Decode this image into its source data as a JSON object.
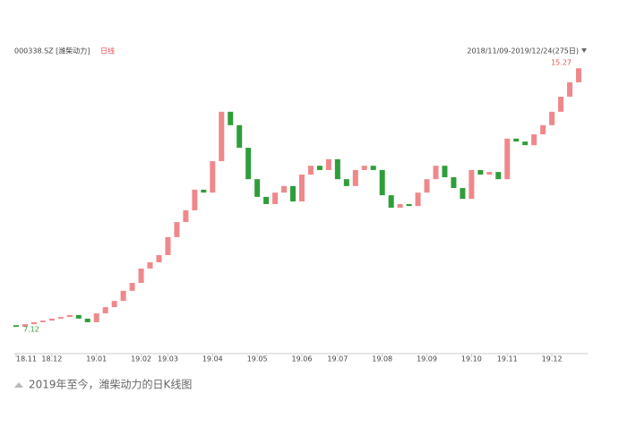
{
  "chart_data": {
    "type": "candlestick",
    "header_left": "000338.SZ [潍柴动力]",
    "header_period": "日线",
    "header_right": "2018/11/09-2019/12/24(275日)",
    "caption": "2019年至今，潍柴动力的日K线图",
    "low_label": 7.12,
    "high_label": 15.27,
    "up_color": "#e8555a",
    "down_color": "#2f9e3a",
    "categories": [
      "18.11",
      null,
      null,
      null,
      "18.12",
      null,
      null,
      null,
      null,
      "19.01",
      null,
      null,
      null,
      null,
      "19.02",
      null,
      null,
      "19.03",
      null,
      null,
      null,
      null,
      "19.04",
      null,
      null,
      null,
      null,
      "19.05",
      null,
      null,
      null,
      null,
      "19.06",
      null,
      null,
      null,
      "19.07",
      null,
      null,
      null,
      null,
      "19.08",
      null,
      null,
      null,
      null,
      "19.09",
      null,
      null,
      null,
      null,
      "19.10",
      null,
      null,
      null,
      "19.11",
      null,
      null,
      null,
      null,
      "19.12",
      null,
      null,
      null
    ],
    "open": [
      7.25,
      7.2,
      7.28,
      7.34,
      7.39,
      7.45,
      7.5,
      7.56,
      7.45,
      7.34,
      7.61,
      7.8,
      7.99,
      8.3,
      8.54,
      8.98,
      9.17,
      9.39,
      9.94,
      10.4,
      10.76,
      11.39,
      11.3,
      12.26,
      13.77,
      13.36,
      12.67,
      11.71,
      11.17,
      10.95,
      11.3,
      11.5,
      11.03,
      11.85,
      12.12,
      11.99,
      12.32,
      11.71,
      11.5,
      11.99,
      12.12,
      11.99,
      11.22,
      10.84,
      10.95,
      10.89,
      11.3,
      11.71,
      12.12,
      11.77,
      11.44,
      11.11,
      11.99,
      11.85,
      11.93,
      11.71,
      12.95,
      12.86,
      12.75,
      13.08,
      13.36,
      13.77,
      14.23,
      14.67
    ],
    "close": [
      7.2,
      7.28,
      7.34,
      7.39,
      7.45,
      7.5,
      7.56,
      7.45,
      7.34,
      7.61,
      7.8,
      7.99,
      8.3,
      8.54,
      8.98,
      9.17,
      9.39,
      9.94,
      10.4,
      10.76,
      11.39,
      11.3,
      12.26,
      13.77,
      13.36,
      12.67,
      11.71,
      11.17,
      10.95,
      11.3,
      11.5,
      11.03,
      11.85,
      12.12,
      11.99,
      12.32,
      11.71,
      11.5,
      11.99,
      12.12,
      11.99,
      11.22,
      10.84,
      10.95,
      10.89,
      11.3,
      11.71,
      12.12,
      11.77,
      11.44,
      11.11,
      11.99,
      11.85,
      11.93,
      11.71,
      12.95,
      12.86,
      12.75,
      13.08,
      13.36,
      13.77,
      14.23,
      14.67,
      15.1
    ]
  }
}
